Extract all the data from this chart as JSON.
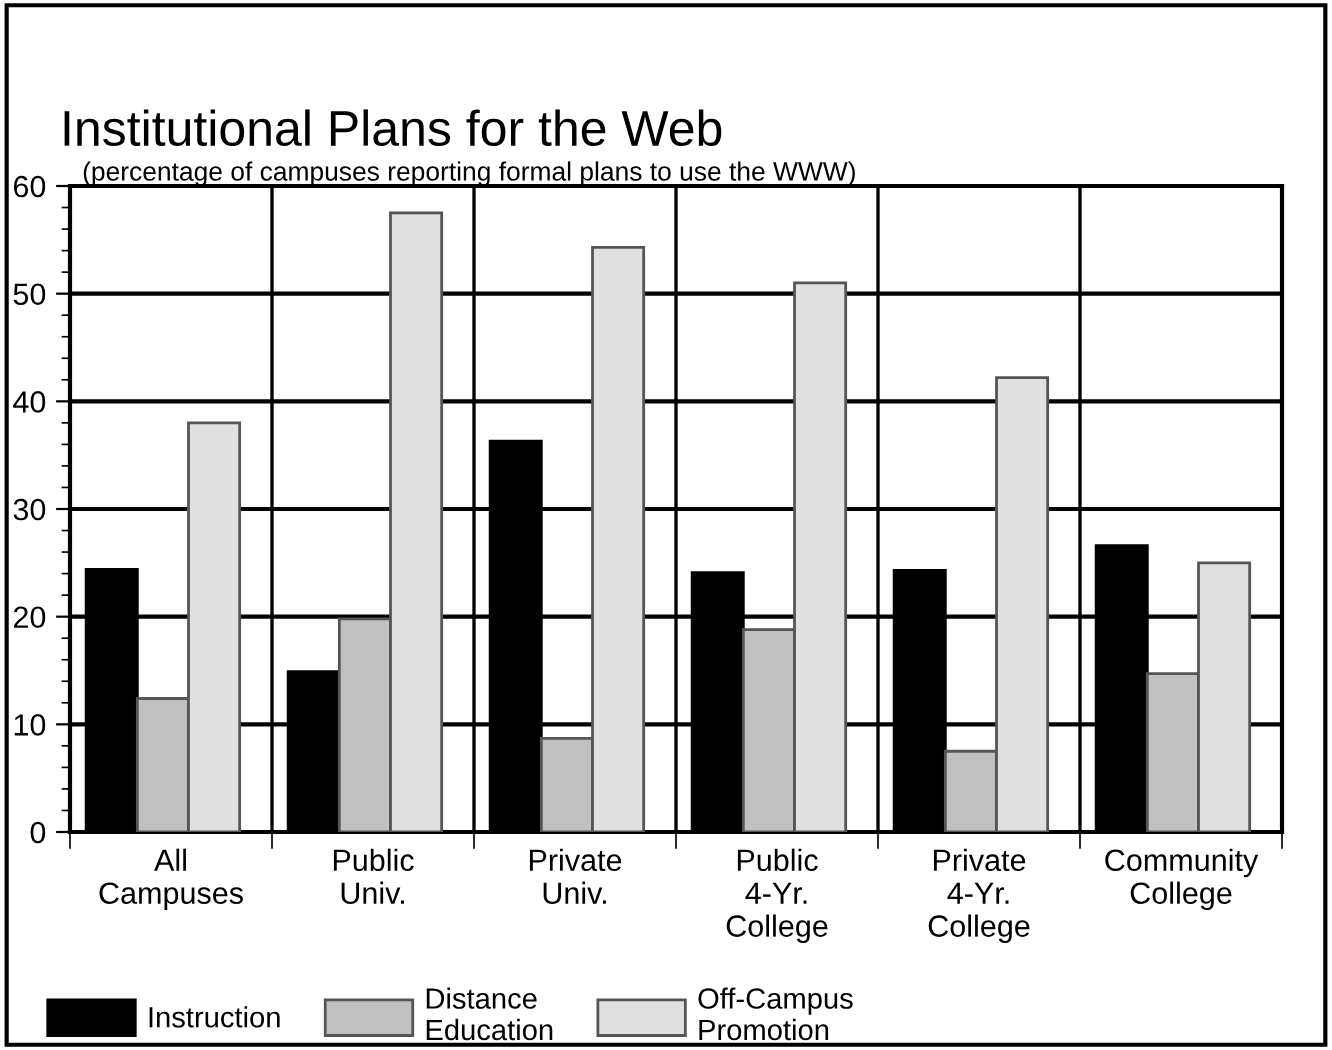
{
  "chart_data": {
    "type": "bar",
    "title": "Institutional Plans for the Web",
    "subtitle": "(percentage of campuses reporting formal plans to use the WWW)",
    "categories": [
      "All\nCampuses",
      "Public\nUniv.",
      "Private\nUniv.",
      "Public\n4-Yr.\nCollege",
      "Private\n4-Yr.\nCollege",
      "Community\nCollege"
    ],
    "series": [
      {
        "name": "Instruction",
        "color": "#000000",
        "values": [
          24.4,
          14.9,
          36.3,
          24.1,
          24.3,
          26.6
        ]
      },
      {
        "name": "Distance\nEducation",
        "color": "#c0c0c0",
        "values": [
          12.4,
          19.8,
          8.7,
          18.8,
          7.5,
          14.7
        ]
      },
      {
        "name": "Off-Campus\nPromotion",
        "color": "#e0e0e0",
        "values": [
          38.0,
          57.5,
          54.3,
          51.0,
          42.2,
          25.0
        ]
      }
    ],
    "ylim": [
      0,
      60
    ],
    "yticks": [
      0,
      10,
      20,
      30,
      40,
      50,
      60
    ],
    "grid": true,
    "legend": "bottom"
  }
}
